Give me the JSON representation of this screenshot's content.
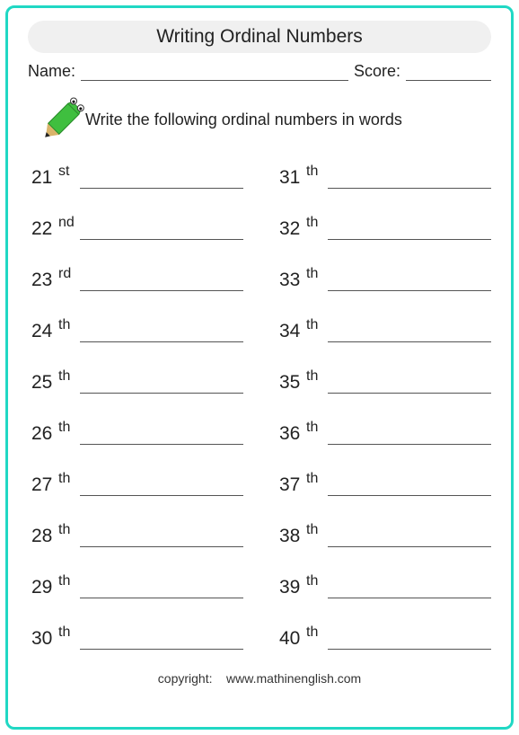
{
  "title": "Writing Ordinal Numbers",
  "name_label": "Name:",
  "score_label": "Score:",
  "instruction": "Write the following ordinal numbers in words",
  "left": [
    {
      "n": "21",
      "s": "st"
    },
    {
      "n": "22",
      "s": "nd"
    },
    {
      "n": "23",
      "s": "rd"
    },
    {
      "n": "24",
      "s": "th"
    },
    {
      "n": "25",
      "s": "th"
    },
    {
      "n": "26",
      "s": "th"
    },
    {
      "n": "27",
      "s": "th"
    },
    {
      "n": "28",
      "s": "th"
    },
    {
      "n": "29",
      "s": "th"
    },
    {
      "n": "30",
      "s": "th"
    }
  ],
  "right": [
    {
      "n": "31",
      "s": "th"
    },
    {
      "n": "32",
      "s": "th"
    },
    {
      "n": "33",
      "s": "th"
    },
    {
      "n": "34",
      "s": "th"
    },
    {
      "n": "35",
      "s": "th"
    },
    {
      "n": "36",
      "s": "th"
    },
    {
      "n": "37",
      "s": "th"
    },
    {
      "n": "38",
      "s": "th"
    },
    {
      "n": "39",
      "s": "th"
    },
    {
      "n": "40",
      "s": "th"
    }
  ],
  "copyright_label": "copyright:",
  "copyright_site": "www.mathinenglish.com",
  "colors": {
    "border": "#20d8c4",
    "title_bg": "#f0f0f0",
    "text": "#222222",
    "line": "#555555",
    "pencil_body": "#3fbf3f",
    "pencil_tip": "#d9b46a"
  }
}
